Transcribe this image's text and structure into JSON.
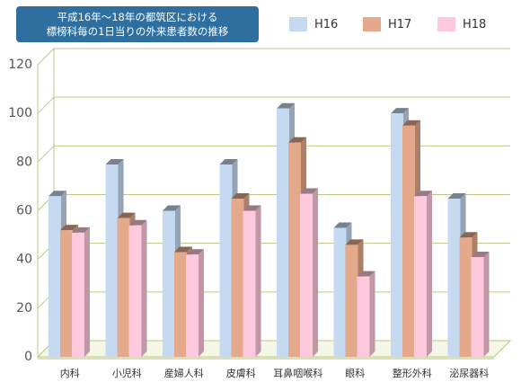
{
  "chart_data": {
    "type": "bar",
    "title_lines": [
      "平成16年～18年の都筑区における",
      "標榜科毎の1日当りの外来患者数の推移"
    ],
    "categories": [
      "内科",
      "小児科",
      "産婦人科",
      "皮膚科",
      "耳鼻咽喉科",
      "眼科",
      "整形外科",
      "泌尿器科"
    ],
    "series": [
      {
        "name": "H16",
        "color": "#c5d9f1",
        "values": [
          66,
          79,
          60,
          79,
          102,
          53,
          100,
          65
        ]
      },
      {
        "name": "H17",
        "color": "#e4a98a",
        "values": [
          52,
          57,
          43,
          65,
          88,
          46,
          95,
          49
        ]
      },
      {
        "name": "H18",
        "color": "#ffc9dd",
        "values": [
          51,
          54,
          42,
          60,
          67,
          33,
          66,
          41
        ]
      }
    ],
    "yticks": [
      0,
      20,
      40,
      60,
      80,
      100,
      120
    ],
    "ylim": [
      0,
      120
    ],
    "grid": true,
    "legend": "top-right",
    "xlabel": "",
    "ylabel": ""
  }
}
